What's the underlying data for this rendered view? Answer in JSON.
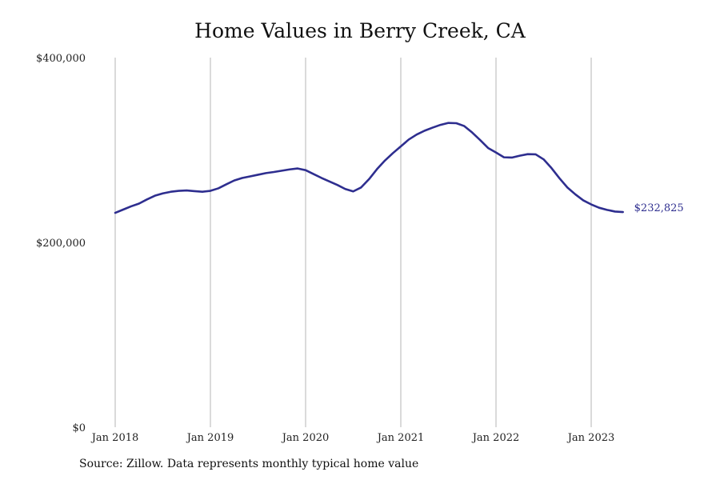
{
  "chart_data": {
    "type": "line",
    "title": "Home Values in Berry Creek, CA",
    "xlabel": "",
    "ylabel": "",
    "ylim": [
      0,
      400000
    ],
    "y_ticks": [
      {
        "value": 0,
        "label": "$0"
      },
      {
        "value": 200000,
        "label": "$200,000"
      },
      {
        "value": 400000,
        "label": "$400,000"
      }
    ],
    "x_ticks": [
      {
        "date": "2018-01",
        "label": "Jan 2018"
      },
      {
        "date": "2019-01",
        "label": "Jan 2019"
      },
      {
        "date": "2020-01",
        "label": "Jan 2020"
      },
      {
        "date": "2021-01",
        "label": "Jan 2021"
      },
      {
        "date": "2022-01",
        "label": "Jan 2022"
      },
      {
        "date": "2023-01",
        "label": "Jan 2023"
      }
    ],
    "x_range": [
      "2018-01",
      "2023-12"
    ],
    "grid": "vertical lines at x ticks",
    "series": [
      {
        "color": "#2e2e8f",
        "x": [
          "2018-01",
          "2018-02",
          "2018-03",
          "2018-04",
          "2018-05",
          "2018-06",
          "2018-07",
          "2018-08",
          "2018-09",
          "2018-10",
          "2018-11",
          "2018-12",
          "2019-01",
          "2019-02",
          "2019-03",
          "2019-04",
          "2019-05",
          "2019-06",
          "2019-07",
          "2019-08",
          "2019-09",
          "2019-10",
          "2019-11",
          "2019-12",
          "2020-01",
          "2020-02",
          "2020-03",
          "2020-04",
          "2020-05",
          "2020-06",
          "2020-07",
          "2020-08",
          "2020-09",
          "2020-10",
          "2020-11",
          "2020-12",
          "2021-01",
          "2021-02",
          "2021-03",
          "2021-04",
          "2021-05",
          "2021-06",
          "2021-07",
          "2021-08",
          "2021-09",
          "2021-10",
          "2021-11",
          "2021-12",
          "2022-01",
          "2022-02",
          "2022-03",
          "2022-04",
          "2022-05",
          "2022-06",
          "2022-07",
          "2022-08",
          "2022-09",
          "2022-10",
          "2022-11",
          "2022-12",
          "2023-01",
          "2023-02",
          "2023-03",
          "2023-04",
          "2023-05"
        ],
        "values": [
          232000,
          235500,
          239000,
          242000,
          246500,
          250500,
          253000,
          254800,
          255800,
          256200,
          255500,
          254800,
          255800,
          258500,
          262800,
          267000,
          269700,
          271400,
          273200,
          275000,
          276200,
          277600,
          279000,
          280000,
          278200,
          274000,
          269800,
          266000,
          262200,
          257800,
          255200,
          259500,
          268500,
          279300,
          288600,
          296600,
          303900,
          311300,
          316700,
          320900,
          324200,
          327200,
          329300,
          329000,
          325900,
          318900,
          310800,
          302200,
          297300,
          292100,
          291800,
          293800,
          295500,
          295300,
          289900,
          280400,
          269400,
          259400,
          252000,
          245500,
          241100,
          237500,
          235200,
          233400,
          232825
        ]
      }
    ],
    "end_label": "$232,825"
  },
  "source": "Source: Zillow. Data represents monthly typical home value"
}
